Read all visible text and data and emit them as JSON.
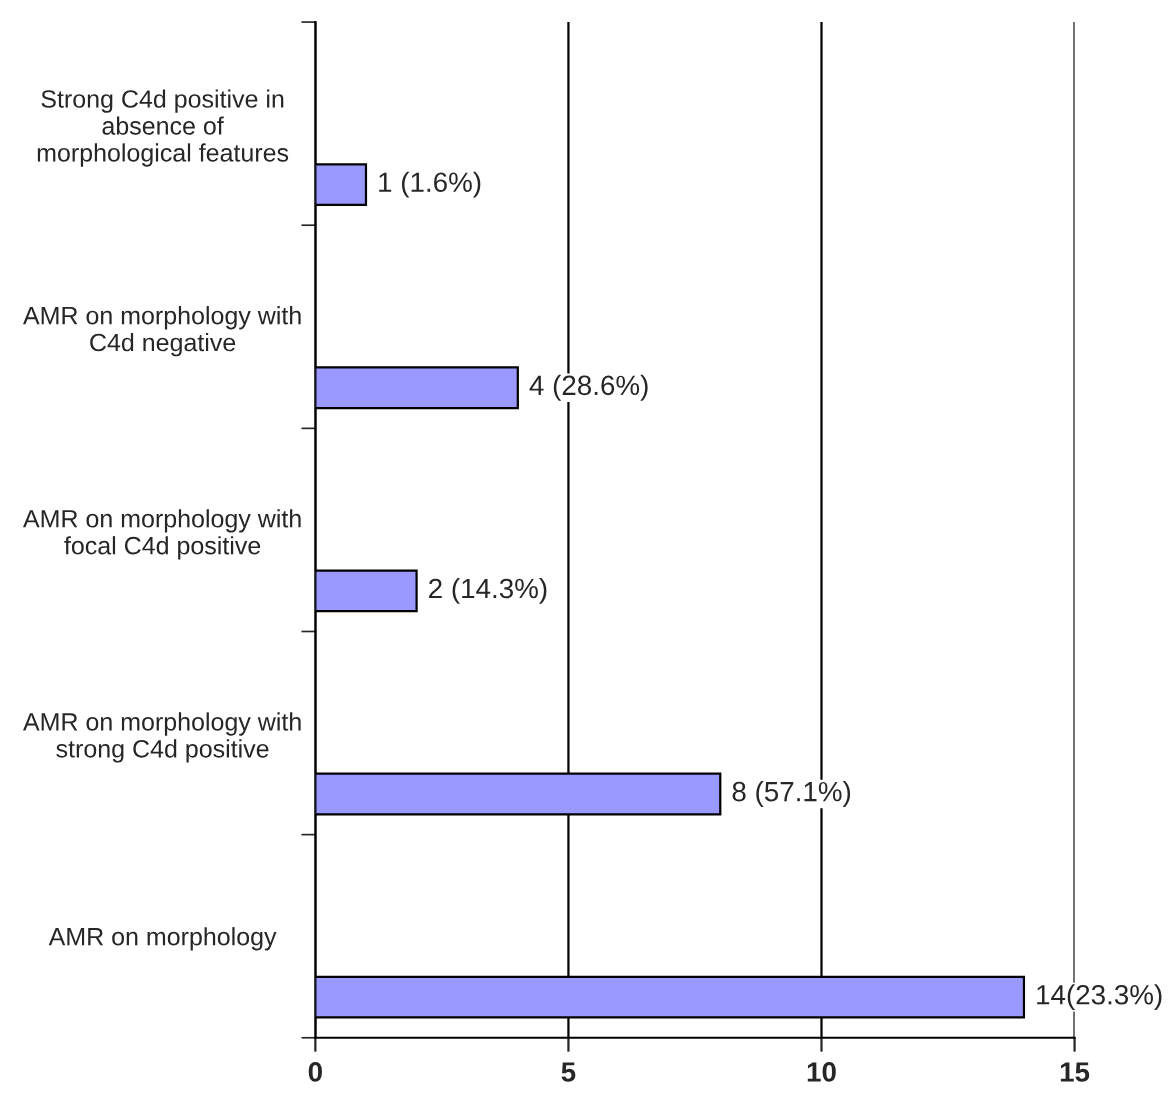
{
  "chart_data": {
    "type": "bar",
    "orientation": "horizontal",
    "categories": [
      "Strong C4d positive in absence of morphological features",
      "AMR on morphology with C4d negative",
      "AMR on morphology with focal C4d positive",
      "AMR on morphology with strong C4d positive",
      "AMR on morphology"
    ],
    "values": [
      1,
      4,
      2,
      8,
      14
    ],
    "value_labels": [
      "1 (1.6%)",
      "4 (28.6%)",
      "2 (14.3%)",
      "8 (57.1%)",
      "14(23.3%)"
    ],
    "color": "#9999ff",
    "xlim": [
      0,
      15
    ],
    "xticks": [
      0,
      5,
      10,
      15
    ],
    "grid": "x",
    "legend": false
  }
}
